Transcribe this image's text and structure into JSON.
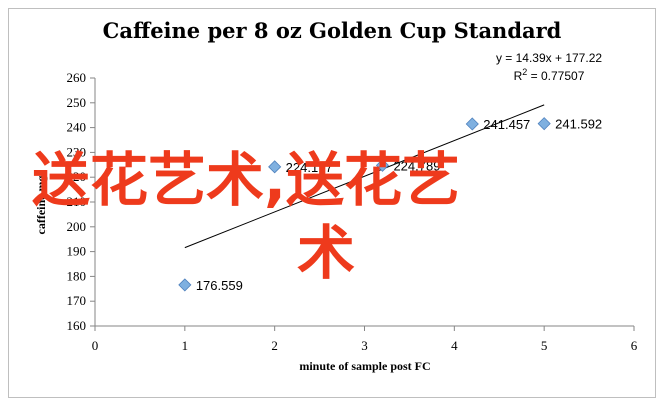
{
  "chart_data": {
    "type": "scatter",
    "title": "Caffeine per 8 oz Golden Cup Standard",
    "xlabel": "minute of sample post FC",
    "ylabel": "caffeine mg",
    "xlim": [
      0,
      6
    ],
    "ylim": [
      160,
      260
    ],
    "xticks": [
      0,
      1,
      2,
      3,
      4,
      5,
      6
    ],
    "yticks": [
      160,
      170,
      180,
      190,
      200,
      210,
      220,
      230,
      240,
      250,
      260
    ],
    "grid": false,
    "marker_color": "#7fb0e0",
    "series": [
      {
        "points": [
          {
            "x": 1,
            "y": 176.559,
            "label": "176.559"
          },
          {
            "x": 2,
            "y": 224.177,
            "label": "224.177"
          },
          {
            "x": 3.2,
            "y": 224.789,
            "label": "224.789"
          },
          {
            "x": 4.2,
            "y": 241.457,
            "label": "241.457"
          },
          {
            "x": 5,
            "y": 241.592,
            "label": "241.592"
          }
        ]
      }
    ],
    "trendline": {
      "slope": 14.39,
      "intercept": 177.22,
      "x_range": [
        1,
        5
      ],
      "equation": "y = 14.39x + 177.22",
      "r2_text": "R",
      "r2_value": " = 0.77507"
    }
  },
  "watermark": {
    "line1": "送花艺术,送花艺",
    "line2": "术"
  }
}
